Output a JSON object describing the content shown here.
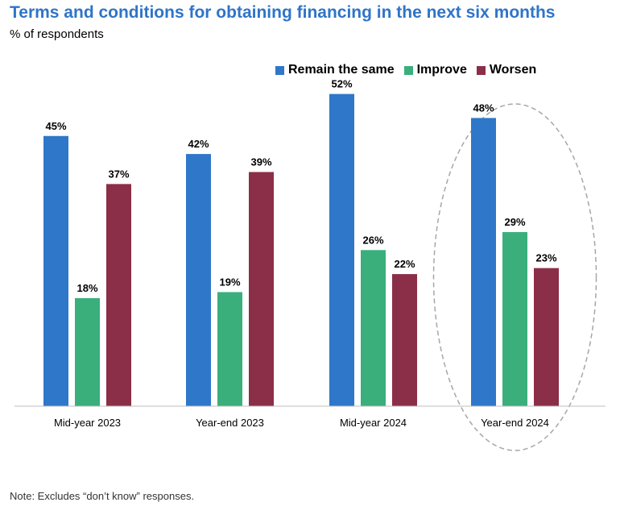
{
  "header": {
    "title": "Terms and conditions for obtaining financing in the next six months",
    "subtitle": "% of respondents"
  },
  "footer": {
    "note": "Note: Excludes “don’t know” responses."
  },
  "colors": {
    "title": "#2f74c8",
    "remain": "#2f77c9",
    "improve": "#3aaf7c",
    "worsen": "#8b2e47",
    "highlight_ellipse": "#a6a6a6"
  },
  "chart_data": {
    "type": "bar",
    "title": "Terms and conditions for obtaining financing in the next six months",
    "ylabel": "% of respondents",
    "xlabel": "",
    "ylim": [
      0,
      60
    ],
    "grid": false,
    "legend_position": "top-right",
    "categories": [
      "Mid-year 2023",
      "Year-end 2023",
      "Mid-year 2024",
      "Year-end 2024"
    ],
    "highlighted_category": "Year-end 2024",
    "series": [
      {
        "name": "Remain the same",
        "key": "remain",
        "values": [
          45,
          42,
          52,
          48
        ],
        "labels": [
          "45%",
          "42%",
          "52%",
          "48%"
        ]
      },
      {
        "name": "Improve",
        "key": "improve",
        "values": [
          18,
          19,
          26,
          29
        ],
        "labels": [
          "18%",
          "19%",
          "26%",
          "29%"
        ]
      },
      {
        "name": "Worsen",
        "key": "worsen",
        "values": [
          37,
          39,
          22,
          23
        ],
        "labels": [
          "37%",
          "39%",
          "22%",
          "23%"
        ]
      }
    ]
  }
}
